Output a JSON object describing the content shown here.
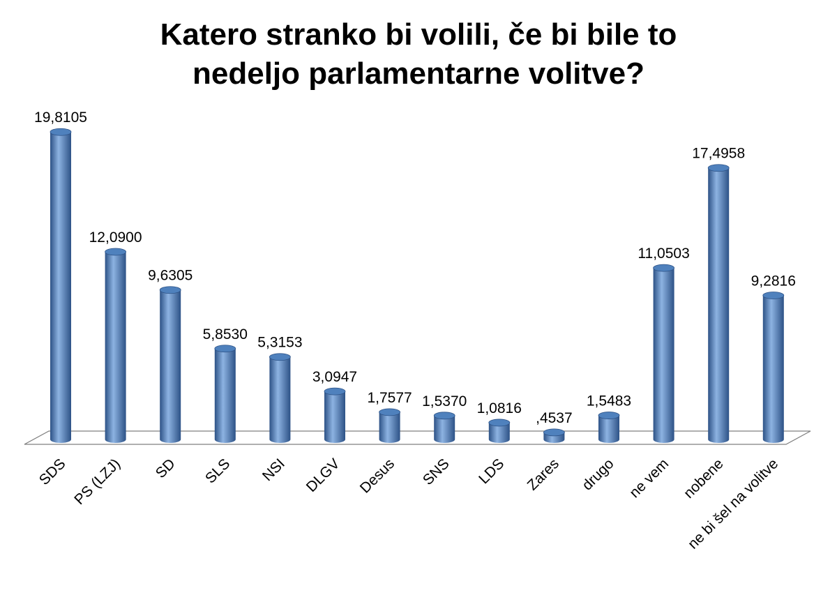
{
  "chart_data": {
    "type": "bar",
    "title": "Katero stranko bi volili, če bi bile to\nnedeljo parlamentarne volitve?",
    "xlabel": "",
    "ylabel": "",
    "categories": [
      "SDS",
      "PS (LZJ)",
      "SD",
      "SLS",
      "NSI",
      "DLGV",
      "Desus",
      "SNS",
      "LDS",
      "Zares",
      "drugo",
      "ne vem",
      "nobene",
      "ne bi šel na volitve"
    ],
    "values": [
      19.8105,
      12.09,
      9.6305,
      5.853,
      5.3153,
      3.0947,
      1.7577,
      1.537,
      1.0816,
      0.4537,
      1.5483,
      11.0503,
      17.4958,
      9.2816
    ],
    "value_labels": [
      "19,8105",
      "12,0900",
      "9,6305",
      "5,8530",
      "5,3153",
      "3,0947",
      "1,7577",
      "1,5370",
      "1,0816",
      ",4537",
      "1,5483",
      "11,0503",
      "17,4958",
      "9,2816"
    ],
    "ylim": [
      0,
      20
    ],
    "grid": false,
    "legend": "none",
    "style": "3d-cylinder",
    "colors": {
      "bar": "#4F81BD",
      "bar_dark": "#2D5286",
      "bar_light": "#8DB3E2",
      "floor": "#7F7F7F"
    }
  }
}
